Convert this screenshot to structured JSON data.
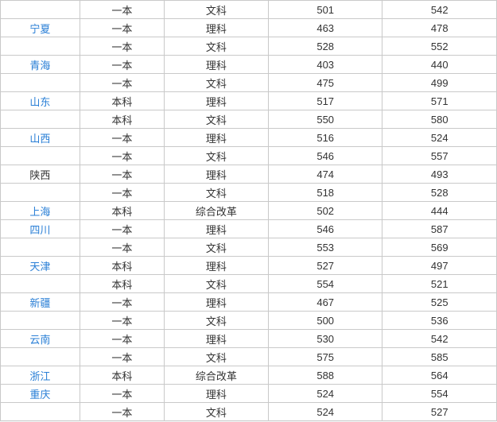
{
  "link_color": "#2a7fd6",
  "text_color": "#333333",
  "border_color": "#c9c9c9",
  "rows": [
    {
      "province": "",
      "province_link": false,
      "batch": "一本",
      "subject": "文科",
      "score1": "501",
      "score2": "542"
    },
    {
      "province": "宁夏",
      "province_link": true,
      "batch": "一本",
      "subject": "理科",
      "score1": "463",
      "score2": "478"
    },
    {
      "province": "",
      "province_link": false,
      "batch": "一本",
      "subject": "文科",
      "score1": "528",
      "score2": "552"
    },
    {
      "province": "青海",
      "province_link": true,
      "batch": "一本",
      "subject": "理科",
      "score1": "403",
      "score2": "440"
    },
    {
      "province": "",
      "province_link": false,
      "batch": "一本",
      "subject": "文科",
      "score1": "475",
      "score2": "499"
    },
    {
      "province": "山东",
      "province_link": true,
      "batch": "本科",
      "subject": "理科",
      "score1": "517",
      "score2": "571"
    },
    {
      "province": "",
      "province_link": false,
      "batch": "本科",
      "subject": "文科",
      "score1": "550",
      "score2": "580"
    },
    {
      "province": "山西",
      "province_link": true,
      "batch": "一本",
      "subject": "理科",
      "score1": "516",
      "score2": "524"
    },
    {
      "province": "",
      "province_link": false,
      "batch": "一本",
      "subject": "文科",
      "score1": "546",
      "score2": "557"
    },
    {
      "province": "陕西",
      "province_link": false,
      "batch": "一本",
      "subject": "理科",
      "score1": "474",
      "score2": "493"
    },
    {
      "province": "",
      "province_link": false,
      "batch": "一本",
      "subject": "文科",
      "score1": "518",
      "score2": "528"
    },
    {
      "province": "上海",
      "province_link": true,
      "batch": "本科",
      "subject": "综合改革",
      "score1": "502",
      "score2": "444"
    },
    {
      "province": "四川",
      "province_link": true,
      "batch": "一本",
      "subject": "理科",
      "score1": "546",
      "score2": "587"
    },
    {
      "province": "",
      "province_link": false,
      "batch": "一本",
      "subject": "文科",
      "score1": "553",
      "score2": "569"
    },
    {
      "province": "天津",
      "province_link": true,
      "batch": "本科",
      "subject": "理科",
      "score1": "527",
      "score2": "497"
    },
    {
      "province": "",
      "province_link": false,
      "batch": "本科",
      "subject": "文科",
      "score1": "554",
      "score2": "521"
    },
    {
      "province": "新疆",
      "province_link": true,
      "batch": "一本",
      "subject": "理科",
      "score1": "467",
      "score2": "525"
    },
    {
      "province": "",
      "province_link": false,
      "batch": "一本",
      "subject": "文科",
      "score1": "500",
      "score2": "536"
    },
    {
      "province": "云南",
      "province_link": true,
      "batch": "一本",
      "subject": "理科",
      "score1": "530",
      "score2": "542"
    },
    {
      "province": "",
      "province_link": false,
      "batch": "一本",
      "subject": "文科",
      "score1": "575",
      "score2": "585"
    },
    {
      "province": "浙江",
      "province_link": true,
      "batch": "本科",
      "subject": "综合改革",
      "score1": "588",
      "score2": "564"
    },
    {
      "province": "重庆",
      "province_link": true,
      "batch": "一本",
      "subject": "理科",
      "score1": "524",
      "score2": "554"
    },
    {
      "province": "",
      "province_link": false,
      "batch": "一本",
      "subject": "文科",
      "score1": "524",
      "score2": "527"
    }
  ]
}
